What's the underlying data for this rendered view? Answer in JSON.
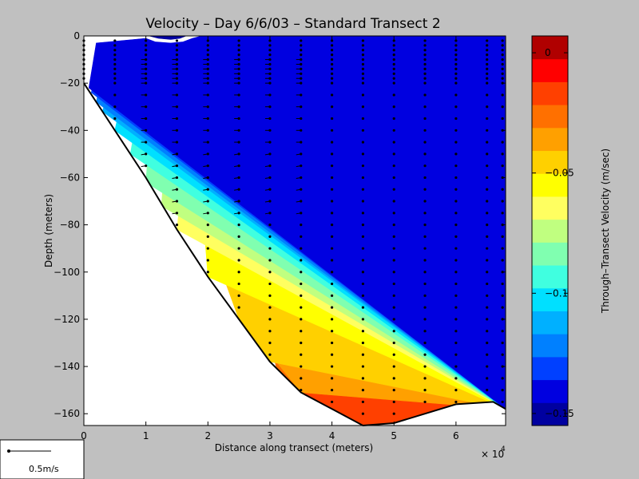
{
  "chart_data": {
    "type": "heatmap",
    "title": "Velocity – Day 6/6/03 – Standard Transect 2",
    "xlabel": "Distance along transect (meters)",
    "ylabel": "Depth (meters)",
    "x_multiplier_label": "× 10",
    "x_multiplier_exponent": "4",
    "xlim": [
      0,
      68000
    ],
    "ylim": [
      -165,
      0
    ],
    "x_ticks": [
      {
        "value": 0,
        "label": "0"
      },
      {
        "value": 10000,
        "label": "1"
      },
      {
        "value": 20000,
        "label": "2"
      },
      {
        "value": 30000,
        "label": "3"
      },
      {
        "value": 40000,
        "label": "4"
      },
      {
        "value": 50000,
        "label": "5"
      },
      {
        "value": 60000,
        "label": "6"
      }
    ],
    "y_ticks": [
      {
        "value": 0,
        "label": "0"
      },
      {
        "value": -20,
        "label": "−20"
      },
      {
        "value": -40,
        "label": "−40"
      },
      {
        "value": -60,
        "label": "−60"
      },
      {
        "value": -80,
        "label": "−80"
      },
      {
        "value": -100,
        "label": "−100"
      },
      {
        "value": -120,
        "label": "−120"
      },
      {
        "value": -140,
        "label": "−140"
      },
      {
        "value": -160,
        "label": "−160"
      }
    ],
    "colorbar": {
      "label": "Through–Transect Velocity (m/sec)",
      "range": [
        -0.155,
        0.007
      ],
      "ticks": [
        {
          "value": 0,
          "label": "0"
        },
        {
          "value": -0.05,
          "label": "−0.05"
        },
        {
          "value": -0.1,
          "label": "−0.1"
        },
        {
          "value": -0.15,
          "label": "−0.15"
        }
      ],
      "colors": [
        "#0000a0",
        "#0000e0",
        "#0040ff",
        "#0080ff",
        "#00b0ff",
        "#00e0ff",
        "#40ffe0",
        "#80ffb0",
        "#c0ff80",
        "#ffff60",
        "#ffff00",
        "#ffd000",
        "#ffa000",
        "#ff7000",
        "#ff4000",
        "#ff0000",
        "#b00000"
      ]
    },
    "bottom_profile": [
      [
        0,
        -20
      ],
      [
        5000,
        -40
      ],
      [
        10000,
        -60
      ],
      [
        15000,
        -82
      ],
      [
        20000,
        -102
      ],
      [
        25000,
        -120
      ],
      [
        30000,
        -138
      ],
      [
        35000,
        -151
      ],
      [
        40000,
        -158
      ],
      [
        45000,
        -165
      ],
      [
        50000,
        -164
      ],
      [
        55000,
        -160
      ],
      [
        60000,
        -156
      ],
      [
        66000,
        -155
      ],
      [
        68000,
        -158
      ]
    ],
    "bands": [
      {
        "level": 16,
        "pts": [
          [
            44500,
            -146
          ],
          [
            46500,
            -136
          ],
          [
            50000,
            -132
          ],
          [
            52500,
            -137
          ],
          [
            54000,
            -150
          ],
          [
            53500,
            -162
          ],
          [
            50000,
            -164
          ],
          [
            45000,
            -165
          ],
          [
            41000,
            -160
          ],
          [
            40500,
            -153
          ],
          [
            42000,
            -149
          ]
        ]
      },
      {
        "level": 15,
        "pts": [
          [
            42000,
            -116
          ],
          [
            46000,
            -104
          ],
          [
            50500,
            -98
          ],
          [
            55000,
            -104
          ],
          [
            58000,
            -125
          ],
          [
            58500,
            -152
          ],
          [
            55000,
            -160
          ],
          [
            50000,
            -164
          ],
          [
            45000,
            -165
          ],
          [
            40000,
            -158
          ],
          [
            35000,
            -151
          ],
          [
            36000,
            -138
          ],
          [
            39000,
            -126
          ]
        ]
      },
      {
        "level": 15,
        "pts": [
          [
            60000,
            -27
          ],
          [
            61500,
            -18
          ],
          [
            64500,
            -15
          ],
          [
            66500,
            -24
          ],
          [
            65000,
            -34
          ],
          [
            62000,
            -33
          ]
        ]
      },
      {
        "level": 14,
        "pts": [
          [
            33000,
            -98
          ],
          [
            38000,
            -84
          ],
          [
            46000,
            -64
          ],
          [
            52000,
            -42
          ],
          [
            55000,
            -22
          ],
          [
            60000,
            -13
          ],
          [
            68000,
            -12
          ],
          [
            68000,
            -158
          ],
          [
            60000,
            -156
          ],
          [
            55000,
            -160
          ],
          [
            50000,
            -164
          ],
          [
            45000,
            -165
          ],
          [
            40000,
            -158
          ],
          [
            35000,
            -151
          ],
          [
            32000,
            -143
          ],
          [
            31000,
            -125
          ]
        ]
      },
      {
        "level": 13,
        "pts": [
          [
            32000,
            -66
          ],
          [
            39000,
            -55
          ],
          [
            44500,
            -32
          ],
          [
            49000,
            -22
          ],
          [
            53000,
            -16
          ],
          [
            56500,
            -12
          ],
          [
            60000,
            -10
          ],
          [
            68000,
            -8
          ],
          [
            68000,
            -158
          ],
          [
            35000,
            -151
          ],
          [
            31000,
            -140
          ],
          [
            29500,
            -125
          ],
          [
            30000,
            -100
          ],
          [
            31000,
            -82
          ]
        ]
      },
      {
        "level": 12,
        "pts": [
          [
            27000,
            -68
          ],
          [
            32000,
            -56
          ],
          [
            37000,
            -40
          ],
          [
            41000,
            -26
          ],
          [
            45000,
            -19
          ],
          [
            50000,
            -15
          ],
          [
            55000,
            -12
          ],
          [
            60000,
            -8
          ],
          [
            65000,
            -4
          ],
          [
            68000,
            -2
          ],
          [
            68000,
            -158
          ],
          [
            35000,
            -151
          ],
          [
            28000,
            -128
          ],
          [
            26000,
            -100
          ],
          [
            26000,
            -82
          ]
        ]
      },
      {
        "level": 11,
        "pts": [
          [
            26000,
            -60
          ],
          [
            30000,
            -50
          ],
          [
            34000,
            -38
          ],
          [
            38000,
            -26
          ],
          [
            41000,
            -20
          ],
          [
            45000,
            -17
          ],
          [
            50000,
            -14
          ],
          [
            55000,
            -10
          ],
          [
            60000,
            -6
          ],
          [
            65000,
            -3
          ],
          [
            68000,
            -1
          ],
          [
            68000,
            -158
          ],
          [
            30000,
            -138
          ],
          [
            25000,
            -120
          ],
          [
            22500,
            -102
          ],
          [
            22000,
            -88
          ]
        ]
      },
      {
        "level": 10,
        "pts": [
          [
            19500,
            -56
          ],
          [
            22000,
            -52
          ],
          [
            26000,
            -40
          ],
          [
            30000,
            -31
          ],
          [
            35000,
            -23
          ],
          [
            40000,
            -18
          ],
          [
            45000,
            -15
          ],
          [
            50000,
            -12
          ],
          [
            55000,
            -8
          ],
          [
            60000,
            -4
          ],
          [
            65000,
            -2
          ],
          [
            68000,
            -1
          ],
          [
            68000,
            -158
          ],
          [
            20000,
            -102
          ],
          [
            19500,
            -85
          ],
          [
            19000,
            -70
          ]
        ]
      },
      {
        "level": 9,
        "pts": [
          [
            15500,
            -52
          ],
          [
            18000,
            -48
          ],
          [
            20500,
            -44
          ],
          [
            24000,
            -36
          ],
          [
            28000,
            -30
          ],
          [
            33000,
            -22
          ],
          [
            38000,
            -17
          ],
          [
            43000,
            -14
          ],
          [
            48000,
            -11
          ],
          [
            53000,
            -8
          ],
          [
            58000,
            -4
          ],
          [
            63000,
            -2
          ],
          [
            68000,
            0
          ],
          [
            68000,
            -158
          ],
          [
            15000,
            -82
          ],
          [
            15500,
            -70
          ]
        ]
      },
      {
        "level": 8,
        "pts": [
          [
            13500,
            -36
          ],
          [
            16500,
            -42
          ],
          [
            19500,
            -41
          ],
          [
            22000,
            -36
          ],
          [
            26000,
            -28
          ],
          [
            31000,
            -20
          ],
          [
            36000,
            -15
          ],
          [
            42000,
            -13
          ],
          [
            47000,
            -10
          ],
          [
            52000,
            -7
          ],
          [
            57000,
            -4
          ],
          [
            62000,
            -2
          ],
          [
            68000,
            0
          ],
          [
            68000,
            -158
          ],
          [
            12500,
            -72
          ],
          [
            13000,
            -55
          ]
        ]
      },
      {
        "level": 7,
        "pts": [
          [
            11000,
            -28
          ],
          [
            14000,
            -34
          ],
          [
            17000,
            -35
          ],
          [
            20000,
            -32
          ],
          [
            24000,
            -24
          ],
          [
            29000,
            -17
          ],
          [
            34000,
            -13
          ],
          [
            40000,
            -11
          ],
          [
            45000,
            -9
          ],
          [
            50000,
            -6
          ],
          [
            55000,
            -4
          ],
          [
            60000,
            -1
          ],
          [
            68000,
            0
          ],
          [
            68000,
            -158
          ],
          [
            10000,
            -62
          ],
          [
            10500,
            -45
          ]
        ]
      },
      {
        "level": 6,
        "pts": [
          [
            9500,
            -20
          ],
          [
            12000,
            -25
          ],
          [
            15000,
            -26
          ],
          [
            19000,
            -22
          ],
          [
            23000,
            -17
          ],
          [
            28000,
            -12
          ],
          [
            34000,
            -9
          ],
          [
            40000,
            -8
          ],
          [
            45000,
            -7
          ],
          [
            50000,
            -5
          ],
          [
            54000,
            -3
          ],
          [
            58000,
            0
          ],
          [
            68000,
            0
          ],
          [
            68000,
            -158
          ],
          [
            7500,
            -50
          ],
          [
            8500,
            -35
          ]
        ]
      },
      {
        "level": 5,
        "pts": [
          [
            8500,
            -14
          ],
          [
            11000,
            -18
          ],
          [
            15000,
            -19
          ],
          [
            19000,
            -16
          ],
          [
            23000,
            -12
          ],
          [
            28000,
            -9
          ],
          [
            33000,
            -7
          ],
          [
            38000,
            -5
          ],
          [
            42000,
            -3
          ],
          [
            46000,
            0
          ],
          [
            68000,
            0
          ],
          [
            68000,
            -158
          ],
          [
            5000,
            -40
          ],
          [
            6000,
            -28
          ]
        ]
      },
      {
        "level": 4,
        "pts": [
          [
            8000,
            -9
          ],
          [
            11000,
            -13
          ],
          [
            15000,
            -14
          ],
          [
            20000,
            -12
          ],
          [
            24000,
            -9
          ],
          [
            28000,
            -6
          ],
          [
            33000,
            -4
          ],
          [
            38000,
            -2
          ],
          [
            42000,
            0
          ],
          [
            68000,
            0
          ],
          [
            68000,
            -158
          ],
          [
            3000,
            -32
          ],
          [
            4500,
            -18
          ]
        ]
      },
      {
        "level": 3,
        "pts": [
          [
            8500,
            -5
          ],
          [
            11000,
            -9
          ],
          [
            15000,
            -10
          ],
          [
            19000,
            -9
          ],
          [
            23000,
            -6
          ],
          [
            27000,
            -4
          ],
          [
            31000,
            -2
          ],
          [
            34000,
            0
          ],
          [
            68000,
            0
          ],
          [
            68000,
            -158
          ],
          [
            2000,
            -28
          ],
          [
            3500,
            -10
          ]
        ]
      },
      {
        "level": 2,
        "pts": [
          [
            9000,
            -2
          ],
          [
            11000,
            -5
          ],
          [
            14000,
            -6
          ],
          [
            17000,
            -6
          ],
          [
            20000,
            -4
          ],
          [
            23000,
            -2
          ],
          [
            26000,
            0
          ],
          [
            68000,
            0
          ],
          [
            68000,
            -158
          ],
          [
            1200,
            -24
          ],
          [
            2500,
            -6
          ]
        ]
      },
      {
        "level": 1,
        "pts": [
          [
            10000,
            -1
          ],
          [
            11500,
            -2.5
          ],
          [
            14000,
            -3
          ],
          [
            16000,
            -2.5
          ],
          [
            17500,
            -1
          ],
          [
            19000,
            0
          ],
          [
            68000,
            0
          ],
          [
            68000,
            -158
          ],
          [
            800,
            -22
          ],
          [
            2000,
            -3
          ]
        ]
      },
      {
        "level": 0,
        "pts": [
          [
            10500,
            0
          ],
          [
            12000,
            -1
          ],
          [
            14000,
            -1.5
          ],
          [
            15500,
            -1
          ],
          [
            16500,
            0
          ]
        ]
      }
    ],
    "station_x": [
      0,
      5000,
      10000,
      15000,
      20000,
      25000,
      30000,
      35000,
      40000,
      45000,
      50000,
      55000,
      60000,
      65000,
      67500
    ]
  },
  "scale_legend": {
    "label": "0.5m/s"
  }
}
